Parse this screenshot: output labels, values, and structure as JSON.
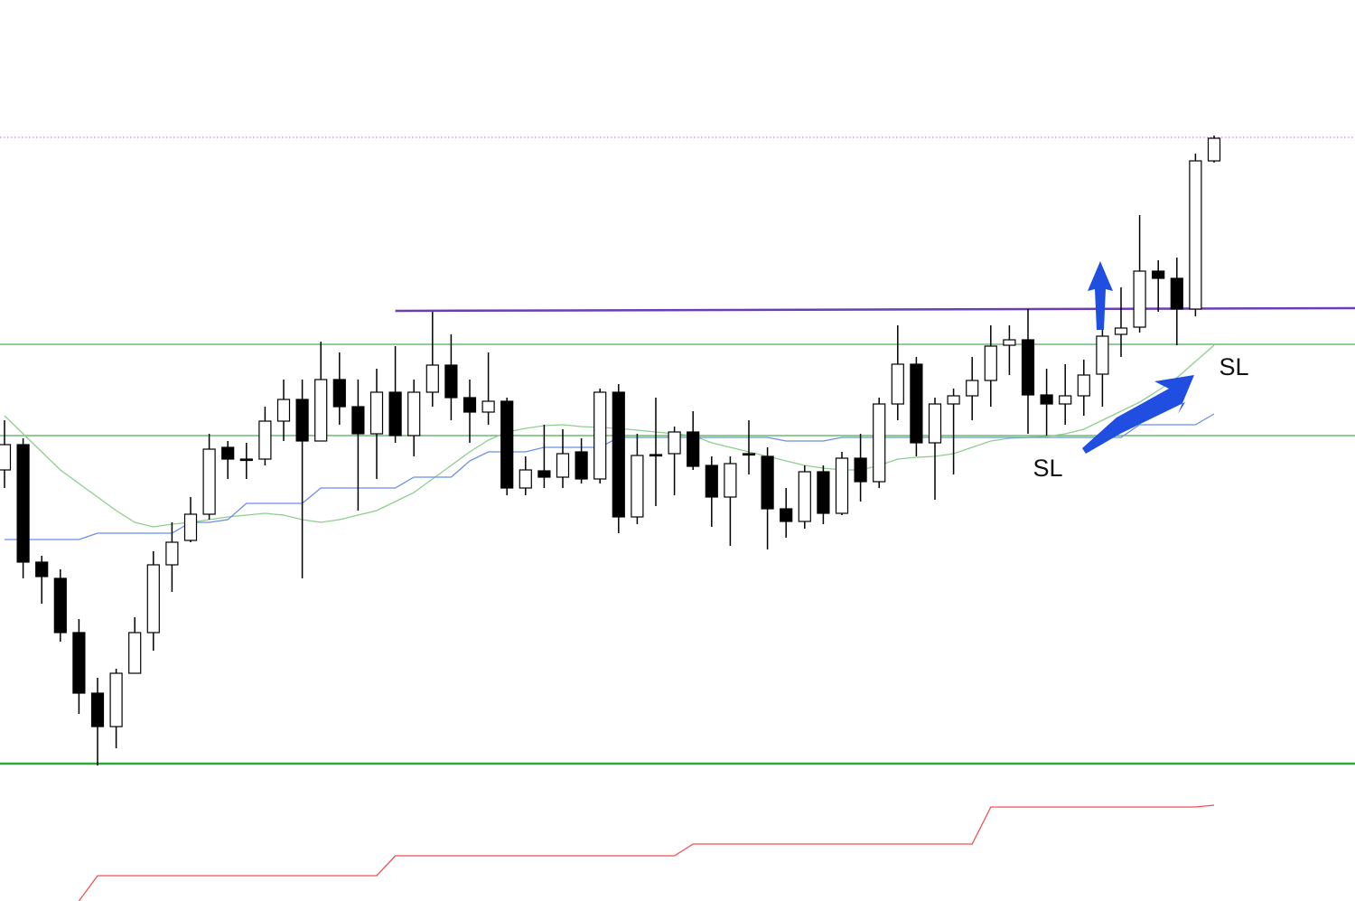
{
  "chart_data": {
    "type": "candlestick",
    "ylim": [
      0,
      997
    ],
    "up_color": "#ffffff",
    "down_color": "#000000",
    "open": [
      477,
      505,
      375,
      357,
      297,
      230,
      193,
      252,
      297,
      372,
      399,
      428,
      502,
      489,
      489,
      531,
      555,
      509,
      577,
      547,
      517,
      563,
      515,
      563,
      593,
      557,
      541,
      553,
      457,
      476,
      469,
      497,
      467,
      563,
      425,
      494,
      495,
      519,
      482,
      447,
      495,
      492,
      434,
      420,
      475,
      429,
      490,
      464,
      550,
      594,
      507,
      550,
      559,
      576,
      615,
      621,
      560,
      550,
      559,
      583,
      627,
      635,
      697,
      689,
      655,
      819
    ],
    "high": [
      532,
      512,
      382,
      367,
      312,
      247,
      257,
      314,
      387,
      419,
      447,
      517,
      509,
      507,
      547,
      577,
      577,
      619,
      607,
      577,
      589,
      614,
      577,
      652,
      627,
      577,
      607,
      557,
      492,
      527,
      522,
      512,
      567,
      572,
      517,
      557,
      525,
      542,
      492,
      492,
      532,
      502,
      457,
      482,
      482,
      497,
      517,
      557,
      637,
      602,
      557,
      567,
      602,
      637,
      637,
      655,
      589,
      594,
      599,
      657,
      679,
      759,
      709,
      712,
      827,
      847
    ],
    "low": [
      457,
      357,
      329,
      287,
      207,
      150,
      169,
      252,
      277,
      342,
      397,
      422,
      467,
      467,
      482,
      509,
      357,
      509,
      527,
      432,
      467,
      507,
      492,
      547,
      532,
      507,
      527,
      449,
      449,
      457,
      457,
      462,
      462,
      407,
      417,
      437,
      449,
      477,
      414,
      393,
      472,
      389,
      402,
      412,
      417,
      427,
      442,
      457,
      532,
      492,
      444,
      472,
      532,
      547,
      582,
      517,
      515,
      527,
      537,
      547,
      602,
      629,
      652,
      615,
      647,
      817
    ],
    "close": [
      505,
      375,
      359,
      297,
      230,
      193,
      252,
      297,
      372,
      397,
      428,
      500,
      489,
      488,
      531,
      555,
      509,
      577,
      547,
      517,
      563,
      515,
      563,
      593,
      557,
      541,
      553,
      457,
      477,
      469,
      495,
      467,
      563,
      425,
      493,
      493,
      519,
      481,
      447,
      484,
      494,
      434,
      420,
      475,
      429,
      490,
      464,
      550,
      594,
      507,
      550,
      559,
      576,
      614,
      621,
      560,
      550,
      559,
      582,
      625,
      634,
      697,
      689,
      655,
      819,
      844
    ],
    "series": [
      {
        "color": "#8fce8f",
        "values": [
          537,
          517,
          497,
          477,
          462,
          447,
          432,
          419,
          414,
          417,
          419,
          422,
          425,
          427,
          429,
          427,
          422,
          419,
          422,
          427,
          432,
          442,
          452,
          467,
          482,
          497,
          510,
          519,
          523,
          526,
          527,
          525,
          524,
          523,
          521,
          519,
          517,
          515,
          507,
          502,
          497,
          492,
          487,
          482,
          479,
          477,
          477,
          482,
          489,
          491,
          492,
          495,
          502,
          509,
          512,
          513,
          514,
          517,
          522,
          532,
          542,
          552,
          565,
          579,
          597,
          615
        ]
      },
      {
        "color": "#6a8ee8",
        "values": [
          400,
          400,
          400,
          400,
          400,
          407,
          407,
          407,
          407,
          407,
          419,
          419,
          422,
          440,
          440,
          440,
          440,
          457,
          457,
          457,
          457,
          457,
          469,
          469,
          469,
          487,
          497,
          497,
          497,
          502,
          502,
          502,
          502,
          513,
          513,
          513,
          513,
          513,
          513,
          513,
          513,
          513,
          509,
          509,
          509,
          513,
          513,
          513,
          513,
          513,
          513,
          513,
          513,
          513,
          513,
          513,
          513,
          513,
          513,
          513,
          513,
          527,
          527,
          527,
          527,
          539
        ]
      },
      {
        "color": "#f05050",
        "values": [
          null,
          null,
          null,
          null,
          0,
          28,
          28,
          28,
          28,
          28,
          28,
          28,
          28,
          28,
          28,
          28,
          28,
          28,
          28,
          28,
          28,
          50,
          50,
          50,
          50,
          50,
          50,
          50,
          50,
          50,
          50,
          50,
          50,
          50,
          50,
          50,
          50,
          63,
          63,
          63,
          63,
          63,
          63,
          63,
          63,
          63,
          63,
          63,
          63,
          63,
          63,
          63,
          63,
          104,
          104,
          104,
          104,
          104,
          104,
          104,
          104,
          104,
          104,
          104,
          104,
          106
        ]
      }
    ],
    "levels": [
      {
        "value": 845,
        "color": "#b070c0",
        "style": "dotted"
      },
      {
        "value": 616,
        "color": "#4caf50",
        "style": "thin"
      },
      {
        "value": 515,
        "color": "#4caf50",
        "style": "thin"
      },
      {
        "value": 152,
        "color": "#2ea83a",
        "style": "thick"
      }
    ],
    "trendline": {
      "color": "#6a3fb5",
      "values": [
        653,
        656
      ]
    },
    "annotations": [
      "SL",
      "SL"
    ]
  }
}
